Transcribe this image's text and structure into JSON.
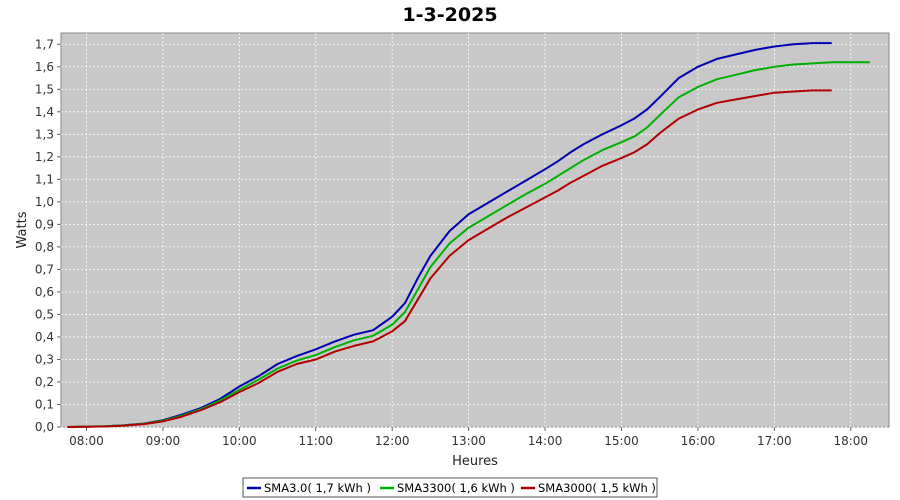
{
  "chart_data": {
    "type": "line",
    "title": "1-3-2025",
    "xlabel": "Heures",
    "ylabel": "Watts",
    "x_unit": "time of day (hours)",
    "xlim": [
      "07:40",
      "18:30"
    ],
    "ylim": [
      0,
      1.75
    ],
    "x_ticks": [
      "08:00",
      "09:00",
      "10:00",
      "11:00",
      "12:00",
      "13:00",
      "14:00",
      "15:00",
      "16:00",
      "17:00",
      "18:00"
    ],
    "y_ticks": [
      "0,0",
      "0,1",
      "0,2",
      "0,3",
      "0,4",
      "0,5",
      "0,6",
      "0,7",
      "0,8",
      "0,9",
      "1,0",
      "1,1",
      "1,2",
      "1,3",
      "1,4",
      "1,5",
      "1,6",
      "1,7"
    ],
    "grid": true,
    "legend_position": "bottom-center",
    "series": [
      {
        "name": "SMA3.0( 1,7 kWh )",
        "color": "#0000b0",
        "points": [
          [
            "07:45",
            0
          ],
          [
            "08:15",
            0.003
          ],
          [
            "08:30",
            0.008
          ],
          [
            "08:45",
            0.015
          ],
          [
            "09:00",
            0.03
          ],
          [
            "09:15",
            0.055
          ],
          [
            "09:30",
            0.085
          ],
          [
            "09:45",
            0.125
          ],
          [
            "10:00",
            0.18
          ],
          [
            "10:15",
            0.225
          ],
          [
            "10:30",
            0.28
          ],
          [
            "10:45",
            0.315
          ],
          [
            "11:00",
            0.345
          ],
          [
            "11:15",
            0.38
          ],
          [
            "11:30",
            0.41
          ],
          [
            "11:45",
            0.43
          ],
          [
            "12:00",
            0.49
          ],
          [
            "12:10",
            0.55
          ],
          [
            "12:20",
            0.66
          ],
          [
            "12:30",
            0.76
          ],
          [
            "12:45",
            0.87
          ],
          [
            "13:00",
            0.945
          ],
          [
            "13:15",
            0.995
          ],
          [
            "13:30",
            1.045
          ],
          [
            "13:45",
            1.095
          ],
          [
            "14:00",
            1.145
          ],
          [
            "14:10",
            1.18
          ],
          [
            "14:20",
            1.22
          ],
          [
            "14:30",
            1.255
          ],
          [
            "14:45",
            1.3
          ],
          [
            "15:00",
            1.34
          ],
          [
            "15:10",
            1.37
          ],
          [
            "15:20",
            1.41
          ],
          [
            "15:30",
            1.465
          ],
          [
            "15:45",
            1.55
          ],
          [
            "16:00",
            1.6
          ],
          [
            "16:15",
            1.635
          ],
          [
            "16:30",
            1.655
          ],
          [
            "16:45",
            1.675
          ],
          [
            "17:00",
            1.69
          ],
          [
            "17:15",
            1.7
          ],
          [
            "17:30",
            1.705
          ],
          [
            "17:45",
            1.705
          ]
        ]
      },
      {
        "name": "SMA3300( 1,6 kWh )",
        "color": "#00b000",
        "points": [
          [
            "07:45",
            0
          ],
          [
            "08:15",
            0.003
          ],
          [
            "08:30",
            0.007
          ],
          [
            "08:45",
            0.014
          ],
          [
            "09:00",
            0.028
          ],
          [
            "09:15",
            0.05
          ],
          [
            "09:30",
            0.08
          ],
          [
            "09:45",
            0.118
          ],
          [
            "10:00",
            0.165
          ],
          [
            "10:15",
            0.21
          ],
          [
            "10:30",
            0.26
          ],
          [
            "10:45",
            0.295
          ],
          [
            "11:00",
            0.32
          ],
          [
            "11:15",
            0.355
          ],
          [
            "11:30",
            0.385
          ],
          [
            "11:45",
            0.405
          ],
          [
            "12:00",
            0.455
          ],
          [
            "12:10",
            0.51
          ],
          [
            "12:20",
            0.61
          ],
          [
            "12:30",
            0.71
          ],
          [
            "12:45",
            0.815
          ],
          [
            "13:00",
            0.885
          ],
          [
            "13:15",
            0.935
          ],
          [
            "13:30",
            0.985
          ],
          [
            "13:45",
            1.035
          ],
          [
            "14:00",
            1.08
          ],
          [
            "14:10",
            1.115
          ],
          [
            "14:20",
            1.15
          ],
          [
            "14:30",
            1.185
          ],
          [
            "14:45",
            1.23
          ],
          [
            "15:00",
            1.265
          ],
          [
            "15:10",
            1.29
          ],
          [
            "15:20",
            1.33
          ],
          [
            "15:30",
            1.385
          ],
          [
            "15:45",
            1.465
          ],
          [
            "16:00",
            1.51
          ],
          [
            "16:15",
            1.545
          ],
          [
            "16:30",
            1.565
          ],
          [
            "16:45",
            1.585
          ],
          [
            "17:00",
            1.6
          ],
          [
            "17:15",
            1.61
          ],
          [
            "17:30",
            1.615
          ],
          [
            "17:45",
            1.62
          ],
          [
            "18:15",
            1.62
          ]
        ]
      },
      {
        "name": "SMA3000( 1,5 kWh )",
        "color": "#b00000",
        "points": [
          [
            "07:45",
            0
          ],
          [
            "08:15",
            0.002
          ],
          [
            "08:30",
            0.006
          ],
          [
            "08:45",
            0.013
          ],
          [
            "09:00",
            0.025
          ],
          [
            "09:15",
            0.046
          ],
          [
            "09:30",
            0.075
          ],
          [
            "09:45",
            0.11
          ],
          [
            "10:00",
            0.155
          ],
          [
            "10:15",
            0.195
          ],
          [
            "10:30",
            0.245
          ],
          [
            "10:45",
            0.28
          ],
          [
            "11:00",
            0.3
          ],
          [
            "11:15",
            0.335
          ],
          [
            "11:30",
            0.36
          ],
          [
            "11:45",
            0.38
          ],
          [
            "12:00",
            0.425
          ],
          [
            "12:10",
            0.47
          ],
          [
            "12:20",
            0.565
          ],
          [
            "12:30",
            0.66
          ],
          [
            "12:45",
            0.76
          ],
          [
            "13:00",
            0.83
          ],
          [
            "13:15",
            0.88
          ],
          [
            "13:30",
            0.93
          ],
          [
            "13:45",
            0.975
          ],
          [
            "14:00",
            1.02
          ],
          [
            "14:10",
            1.05
          ],
          [
            "14:20",
            1.085
          ],
          [
            "14:30",
            1.115
          ],
          [
            "14:45",
            1.16
          ],
          [
            "15:00",
            1.195
          ],
          [
            "15:10",
            1.22
          ],
          [
            "15:20",
            1.255
          ],
          [
            "15:30",
            1.305
          ],
          [
            "15:45",
            1.37
          ],
          [
            "16:00",
            1.41
          ],
          [
            "16:15",
            1.44
          ],
          [
            "16:30",
            1.455
          ],
          [
            "16:45",
            1.47
          ],
          [
            "17:00",
            1.485
          ],
          [
            "17:15",
            1.49
          ],
          [
            "17:30",
            1.495
          ],
          [
            "17:45",
            1.495
          ]
        ]
      }
    ]
  }
}
